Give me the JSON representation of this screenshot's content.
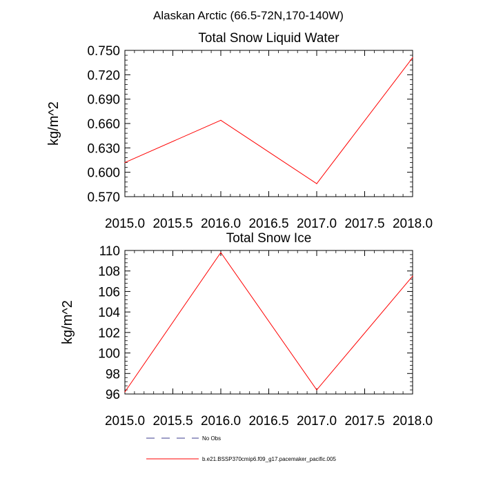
{
  "figure": {
    "title": "Alaskan Arctic (66.5-72N,170-140W)"
  },
  "chart_data": [
    {
      "type": "line",
      "title": "Total Snow Liquid Water",
      "xlabel": "",
      "ylabel": "kg/m^2",
      "xlim": [
        2015.0,
        2018.0
      ],
      "ylim": [
        0.57,
        0.75
      ],
      "x_ticks": [
        "2015.0",
        "2015.5",
        "2016.0",
        "2016.5",
        "2017.0",
        "2017.5",
        "2018.0"
      ],
      "x_tick_values": [
        2015.0,
        2015.5,
        2016.0,
        2016.5,
        2017.0,
        2017.5,
        2018.0
      ],
      "y_ticks": [
        "0.570",
        "0.600",
        "0.630",
        "0.660",
        "0.690",
        "0.720",
        "0.750"
      ],
      "y_tick_values": [
        0.57,
        0.6,
        0.63,
        0.66,
        0.69,
        0.72,
        0.75
      ],
      "series": [
        {
          "name": "b.e21.BSSP370cmip6.f09_g17.pacemaker_pacific.005",
          "color": "#ff0000",
          "x": [
            2015.0,
            2016.0,
            2017.0,
            2018.0
          ],
          "values": [
            0.612,
            0.664,
            0.586,
            0.741
          ]
        }
      ]
    },
    {
      "type": "line",
      "title": "Total Snow Ice",
      "xlabel": "",
      "ylabel": "kg/m^2",
      "xlim": [
        2015.0,
        2018.0
      ],
      "ylim": [
        96,
        110
      ],
      "x_ticks": [
        "2015.0",
        "2015.5",
        "2016.0",
        "2016.5",
        "2017.0",
        "2017.5",
        "2018.0"
      ],
      "x_tick_values": [
        2015.0,
        2015.5,
        2016.0,
        2016.5,
        2017.0,
        2017.5,
        2018.0
      ],
      "y_ticks": [
        "96",
        "98",
        "100",
        "102",
        "104",
        "106",
        "108",
        "110"
      ],
      "y_tick_values": [
        96,
        98,
        100,
        102,
        104,
        106,
        108,
        110
      ],
      "series": [
        {
          "name": "b.e21.BSSP370cmip6.f09_g17.pacemaker_pacific.005",
          "color": "#ff0000",
          "x": [
            2015.0,
            2016.0,
            2017.0,
            2018.0
          ],
          "values": [
            96.2,
            109.8,
            96.4,
            107.5
          ]
        }
      ]
    }
  ],
  "legend": {
    "placement": "bottom-center",
    "items": [
      {
        "label": "No Obs",
        "color": "#3b3b8f",
        "style": "dashed"
      },
      {
        "label": "b.e21.BSSP370cmip6.f09_g17.pacemaker_pacific.005",
        "color": "#ff0000",
        "style": "solid"
      }
    ]
  }
}
